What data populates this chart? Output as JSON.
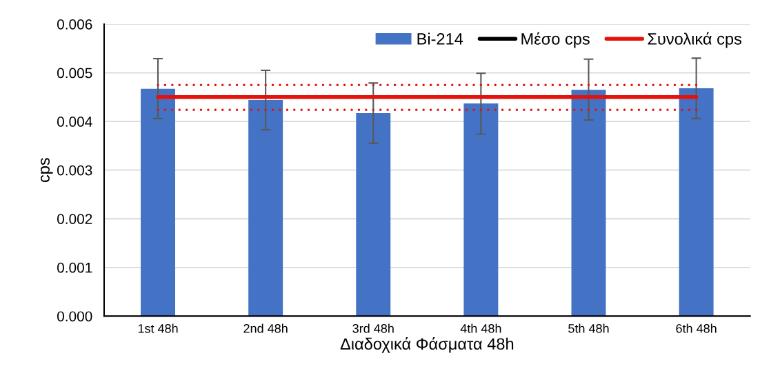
{
  "chart_data": {
    "type": "bar",
    "xlabel": "Διαδοχικά Φάσματα 48h",
    "ylabel": "cps",
    "categories": [
      "1st 48h",
      "2nd 48h",
      "3rd 48h",
      "4th 48h",
      "5th 48h",
      "6th 48h"
    ],
    "series": [
      {
        "name": "Bi-214",
        "color": "#4472c4",
        "values": [
          0.00467,
          0.00444,
          0.00417,
          0.00437,
          0.00465,
          0.00468
        ],
        "errors": [
          [
            0.00406,
            0.00529
          ],
          [
            0.00383,
            0.00505
          ],
          [
            0.00355,
            0.00479
          ],
          [
            0.00374,
            0.00499
          ],
          [
            0.00403,
            0.00528
          ],
          [
            0.00406,
            0.0053
          ]
        ]
      },
      {
        "name": "Μέσο cps",
        "type": "line",
        "color": "#000000",
        "values": [
          null,
          null,
          null,
          null,
          null,
          null
        ]
      },
      {
        "name": "Συνολικά cps",
        "type": "line",
        "color": "#e3120b",
        "values": [
          0.0045,
          0.0045,
          0.0045,
          0.0045,
          0.0045,
          0.0045
        ]
      },
      {
        "type": "line",
        "line_style": "dotted",
        "color": "#e3120b",
        "values": [
          0.00475,
          0.00475,
          0.00475,
          0.00475,
          0.00475,
          0.00475
        ]
      },
      {
        "type": "line",
        "line_style": "dotted",
        "color": "#e3120b",
        "values": [
          0.00424,
          0.00424,
          0.00424,
          0.00424,
          0.00424,
          0.00424
        ]
      }
    ],
    "ylim": [
      0,
      0.006
    ],
    "yticks": [
      {
        "value": 0,
        "label": "0.000"
      },
      {
        "value": 0.001,
        "label": "0.001"
      },
      {
        "value": 0.002,
        "label": "0.002"
      },
      {
        "value": 0.003,
        "label": "0.003"
      },
      {
        "value": 0.004,
        "label": "0.004"
      },
      {
        "value": 0.005,
        "label": "0.005"
      },
      {
        "value": 0.006,
        "label": "0.006"
      }
    ],
    "grid": "y",
    "legend": "top right"
  }
}
